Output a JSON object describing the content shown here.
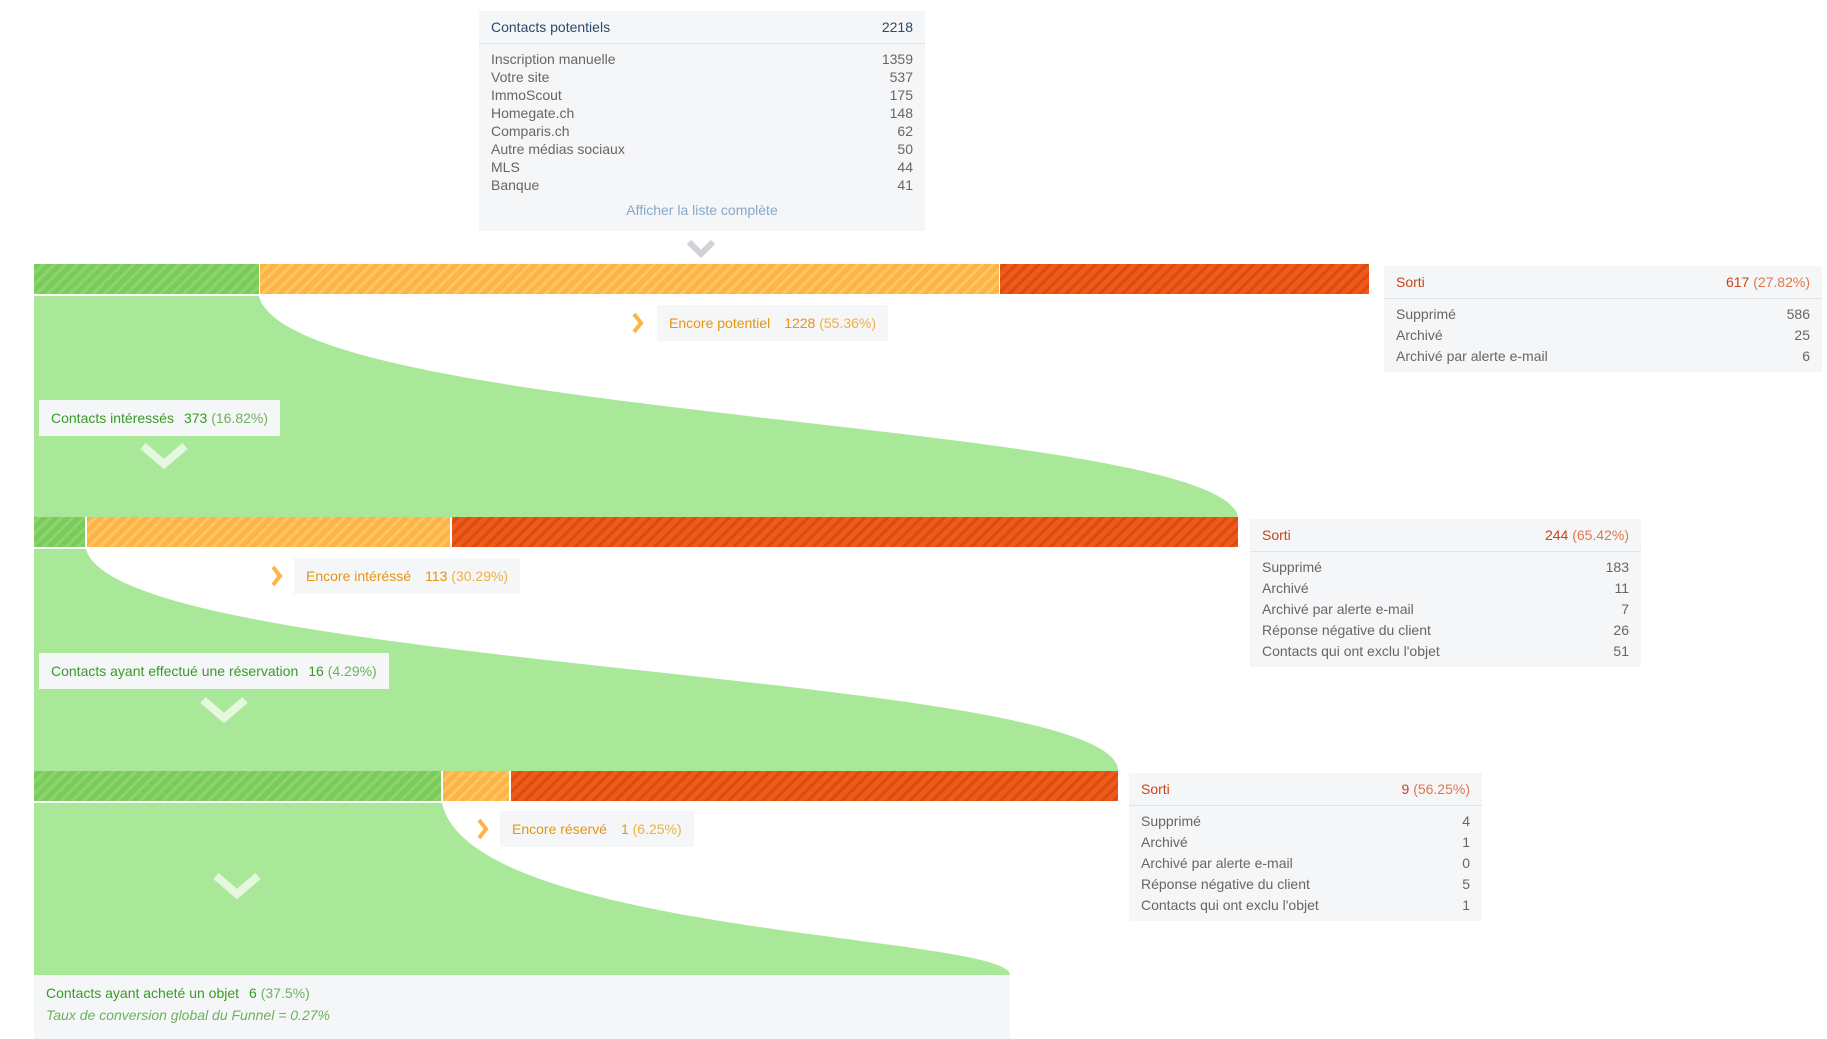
{
  "sources": {
    "title": "Contacts potentiels",
    "total": "2218",
    "items": [
      {
        "label": "Inscription manuelle",
        "value": "1359"
      },
      {
        "label": "Votre site",
        "value": "537"
      },
      {
        "label": "ImmoScout",
        "value": "175"
      },
      {
        "label": "Homegate.ch",
        "value": "148"
      },
      {
        "label": "Comparis.ch",
        "value": "62"
      },
      {
        "label": "Autre médias sociaux",
        "value": "50"
      },
      {
        "label": "MLS",
        "value": "44"
      },
      {
        "label": "Banque",
        "value": "41"
      }
    ],
    "show_all": "Afficher la liste complète"
  },
  "stages": [
    {
      "segments": {
        "advance": 373,
        "still": 1228,
        "exit": 617
      },
      "still": {
        "label": "Encore potentiel",
        "count": "1228",
        "pct": "(55.36%)"
      },
      "exit": {
        "label": "Sorti",
        "count": "617",
        "pct": "(27.82%)",
        "items": [
          {
            "label": "Supprimé",
            "value": "586"
          },
          {
            "label": "Archivé",
            "value": "25"
          },
          {
            "label": "Archivé par alerte e-mail",
            "value": "6"
          }
        ]
      },
      "next": {
        "label": "Contacts intéressés",
        "count": "373",
        "pct": "(16.82%)"
      }
    },
    {
      "segments": {
        "advance": 16,
        "still": 113,
        "exit": 244
      },
      "still": {
        "label": "Encore intéréssé",
        "count": "113",
        "pct": "(30.29%)"
      },
      "exit": {
        "label": "Sorti",
        "count": "244",
        "pct": "(65.42%)",
        "items": [
          {
            "label": "Supprimé",
            "value": "183"
          },
          {
            "label": "Archivé",
            "value": "11"
          },
          {
            "label": "Archivé par alerte e-mail",
            "value": "7"
          },
          {
            "label": "Réponse négative du client",
            "value": "26"
          },
          {
            "label": "Contacts qui ont exclu l'objet",
            "value": "51"
          }
        ]
      },
      "next": {
        "label": "Contacts ayant effectué une réservation",
        "count": "16",
        "pct": "(4.29%)"
      }
    },
    {
      "segments": {
        "advance": 6,
        "still": 1,
        "exit": 9
      },
      "still": {
        "label": "Encore réservé",
        "count": "1",
        "pct": "(6.25%)"
      },
      "exit": {
        "label": "Sorti",
        "count": "9",
        "pct": "(56.25%)",
        "items": [
          {
            "label": "Supprimé",
            "value": "4"
          },
          {
            "label": "Archivé",
            "value": "1"
          },
          {
            "label": "Archivé par alerte e-mail",
            "value": "0"
          },
          {
            "label": "Réponse négative du client",
            "value": "5"
          },
          {
            "label": "Contacts qui ont exclu l'objet",
            "value": "1"
          }
        ]
      }
    }
  ],
  "final": {
    "label": "Contacts ayant acheté un objet",
    "count": "6",
    "pct": "(37.5%)",
    "rate": "Taux de conversion global du Funnel = 0.27%"
  },
  "colors": {
    "advance": "#7acc5a",
    "still": "#fdb444",
    "exit": "#ee5a1a",
    "flow": "#a8e898"
  }
}
